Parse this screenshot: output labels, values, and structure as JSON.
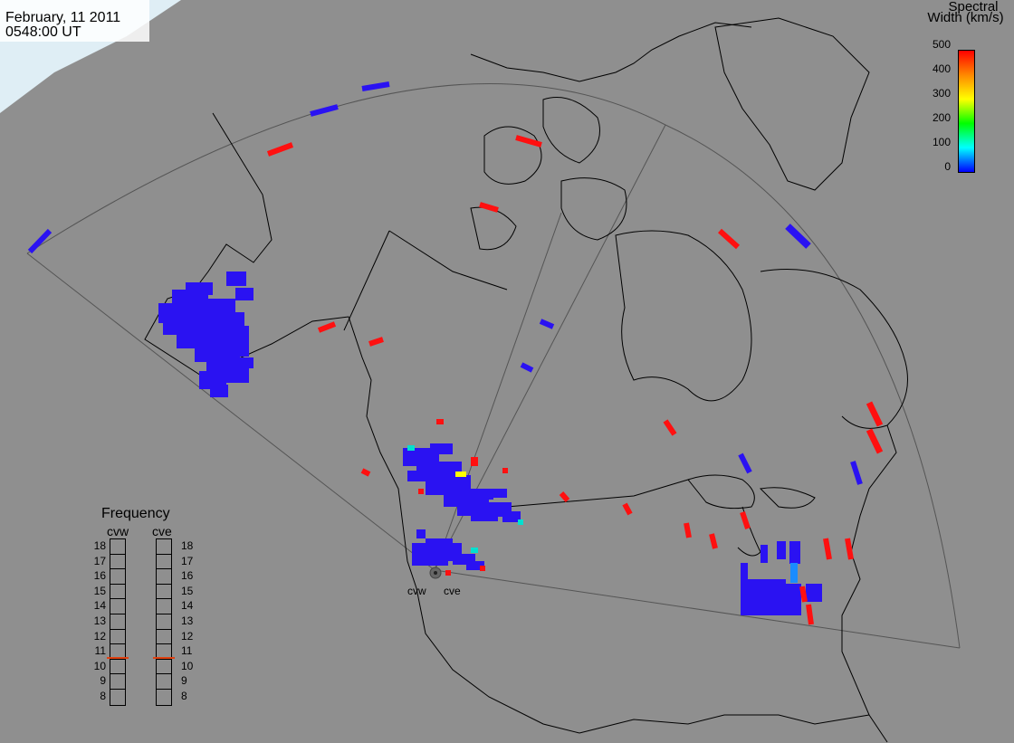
{
  "header": {
    "date": "February, 11 2011",
    "time": "0548:00 UT"
  },
  "colorbar": {
    "title_line1": "Spectral",
    "title_line2": "Width (km/s)",
    "ticks": [
      "500",
      "400",
      "300",
      "200",
      "100",
      "0"
    ],
    "gradient_stops": [
      "#ff0000",
      "#ff8800",
      "#ffff00",
      "#00ff00",
      "#00ffff",
      "#0000ff"
    ]
  },
  "radars": {
    "west_label": "cvw",
    "east_label": "cve"
  },
  "frequency": {
    "title": "Frequency",
    "col1": "cvw",
    "col2": "cve",
    "ticks": [
      "18",
      "17",
      "16",
      "15",
      "14",
      "13",
      "12",
      "11",
      "10",
      "9",
      "8"
    ],
    "cvw_mhz": 10.6,
    "cve_mhz": 10.6,
    "marker_color": "#e04010"
  },
  "colors": {
    "background": "#8f8f8f",
    "land_fill": "#9a9a9a",
    "ice": "#dcebf2",
    "echo_low": "#2a12f2",
    "echo_high": "#ff1010"
  }
}
